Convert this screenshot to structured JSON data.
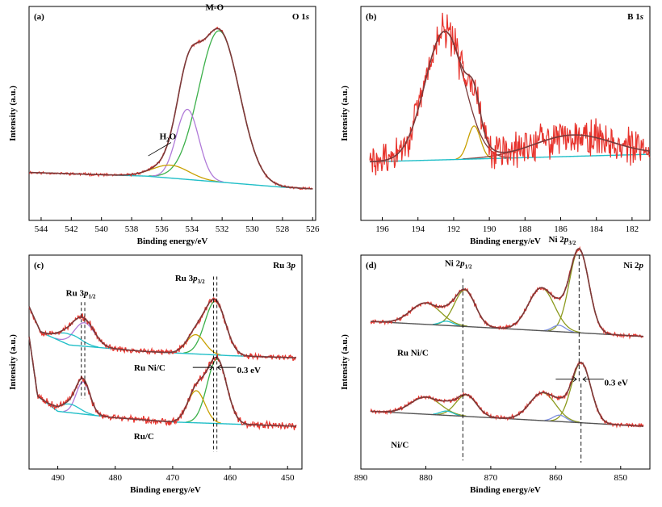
{
  "colors": {
    "raw": "#e8332c",
    "envelope": "#7b3a3a",
    "background": "#22bfc8",
    "baseline": "#555555",
    "green": "#3cb04a",
    "purple": "#b07ad8",
    "olive": "#c8a000",
    "ni_olive": "#8c9a1e",
    "blue": "#7d8fe0",
    "axis": "#000000"
  },
  "chart_data": [
    {
      "id": "a",
      "type": "line",
      "panel_label": "(a)",
      "spectrum_label": "O 1s",
      "xlabel": "Binding energy/eV",
      "ylabel": "Intensity (a.u.)",
      "xlim": [
        544.8,
        525.8
      ],
      "ylim": [
        -0.08,
        1.08
      ],
      "x_reversed": true,
      "xticks": [
        544,
        542,
        540,
        538,
        536,
        534,
        532,
        530,
        528,
        526
      ],
      "peaks": [
        {
          "name": "M-O",
          "center": 532.2,
          "height": 0.82,
          "width": 1.35
        },
        {
          "name": "",
          "center": 534.3,
          "height": 0.38,
          "width": 0.75
        },
        {
          "name": "H2O",
          "center": 535.4,
          "height": 0.07,
          "width": 1.2
        }
      ],
      "baseline": [
        [
          544.8,
          0.18
        ],
        [
          537,
          0.16
        ],
        [
          534,
          0.14
        ],
        [
          531,
          0.12
        ],
        [
          528,
          0.1
        ],
        [
          525.8,
          0.09
        ]
      ],
      "noise_amp": 0.006,
      "annotations": [
        {
          "text": "M-O",
          "x": 532.5,
          "y": 1.06
        },
        {
          "text": "H2O",
          "x": 535.6,
          "y": 0.36,
          "arrow_to": [
            536.9,
            0.27
          ]
        }
      ]
    },
    {
      "id": "b",
      "type": "line",
      "panel_label": "(b)",
      "spectrum_label": "B 1s",
      "xlabel": "Binding energy/eV",
      "ylabel": "Intensity (a.u.)",
      "xlim": [
        197.2,
        181.0
      ],
      "ylim": [
        -0.05,
        1.05
      ],
      "x_reversed": true,
      "xticks": [
        196,
        194,
        192,
        190,
        188,
        186,
        184,
        182
      ],
      "peaks": [
        {
          "name": "",
          "center": 192.5,
          "height": 0.66,
          "width": 1.1
        },
        {
          "name": "",
          "center": 190.85,
          "height": 0.17,
          "width": 0.35
        },
        {
          "name": "",
          "center": 185.3,
          "height": 0.11,
          "width": 2.2
        }
      ],
      "baseline": [
        [
          197.2,
          0.25
        ],
        [
          181.0,
          0.29
        ]
      ],
      "noise_amp": 0.08
    },
    {
      "id": "c",
      "type": "line",
      "panel_label": "(c)",
      "spectrum_label": "Ru 3p",
      "xlabel": "Binding energy/eV",
      "ylabel": "Intensity (a.u.)",
      "xlim": [
        495.0,
        447.5
      ],
      "ylim": [
        0,
        1
      ],
      "x_reversed": true,
      "xticks": [
        490,
        480,
        470,
        460,
        450
      ],
      "series": [
        {
          "name": "Ru Ni/C",
          "peaks": [
            {
              "name": "",
              "center": 462.6,
              "height": 0.25,
              "width": 1.8
            },
            {
              "name": "",
              "center": 466.0,
              "height": 0.09,
              "width": 1.6
            },
            {
              "name": "",
              "center": 485.4,
              "height": 0.11,
              "width": 1.8
            },
            {
              "name": "",
              "center": 488.0,
              "height": 0.05,
              "width": 2.0
            }
          ],
          "baseline": [
            [
              495,
              0.76
            ],
            [
              493,
              0.64
            ],
            [
              488,
              0.58
            ],
            [
              475,
              0.55
            ],
            [
              460,
              0.53
            ],
            [
              448.5,
              0.52
            ]
          ],
          "noise_amp": 0.012
        },
        {
          "name": "Ru/C",
          "peaks": [
            {
              "name": "",
              "center": 462.3,
              "height": 0.3,
              "width": 1.7
            },
            {
              "name": "",
              "center": 465.9,
              "height": 0.15,
              "width": 1.5
            },
            {
              "name": "",
              "center": 485.6,
              "height": 0.15,
              "width": 1.2
            },
            {
              "name": "",
              "center": 488.0,
              "height": 0.04,
              "width": 1.8
            }
          ],
          "baseline": [
            [
              495,
              0.62
            ],
            [
              493.5,
              0.34
            ],
            [
              490,
              0.27
            ],
            [
              480,
              0.24
            ],
            [
              470,
              0.22
            ],
            [
              448.5,
              0.2
            ]
          ],
          "noise_amp": 0.014
        }
      ],
      "annotations": [
        {
          "text": "Ru 3p1/2",
          "x": 486.0,
          "y": 0.81
        },
        {
          "text": "Ru 3p3/2",
          "x": 467.0,
          "y": 0.88
        },
        {
          "text": "Ru Ni/C",
          "x": 474.0,
          "y": 0.46
        },
        {
          "text": "Ru/C",
          "x": 475.0,
          "y": 0.14
        },
        {
          "text": "0.3 eV",
          "x": 458.8,
          "y": 0.45
        }
      ]
    },
    {
      "id": "d",
      "type": "line",
      "panel_label": "(d)",
      "spectrum_label": "Ni 2p",
      "xlabel": "Binding energy/eV",
      "ylabel": "Intensity (a.u.)",
      "xlim": [
        890.0,
        845.5
      ],
      "ylim": [
        0,
        1
      ],
      "x_reversed": true,
      "xticks": [
        890,
        880,
        870,
        860,
        850
      ],
      "series": [
        {
          "name": "Ru Ni/C",
          "peaks": [
            {
              "name": "Ni 2p3/2",
              "center": 856.4,
              "height": 0.39,
              "width": 1.5
            },
            {
              "name": "",
              "center": 862.2,
              "height": 0.2,
              "width": 2.0
            },
            {
              "name": "",
              "center": 859.5,
              "height": 0.03,
              "width": 1.0
            },
            {
              "name": "Ni 2p1/2",
              "center": 874.0,
              "height": 0.17,
              "width": 1.6
            },
            {
              "name": "",
              "center": 880.0,
              "height": 0.1,
              "width": 2.3
            },
            {
              "name": "",
              "center": 876.8,
              "height": 0.02,
              "width": 1.0
            }
          ],
          "baseline": [
            [
              888.5,
              0.69
            ],
            [
              870,
              0.66
            ],
            [
              846.5,
              0.62
            ]
          ],
          "noise_amp": 0.008
        },
        {
          "name": "Ni/C",
          "peaks": [
            {
              "name": "",
              "center": 856.1,
              "height": 0.28,
              "width": 1.5
            },
            {
              "name": "",
              "center": 862.0,
              "height": 0.13,
              "width": 2.0
            },
            {
              "name": "",
              "center": 859.4,
              "height": 0.03,
              "width": 1.0
            },
            {
              "name": "",
              "center": 873.8,
              "height": 0.1,
              "width": 1.6
            },
            {
              "name": "",
              "center": 880.0,
              "height": 0.08,
              "width": 2.3
            },
            {
              "name": "",
              "center": 876.8,
              "height": 0.02,
              "width": 1.0
            }
          ],
          "baseline": [
            [
              888.5,
              0.27
            ],
            [
              870,
              0.24
            ],
            [
              846.5,
              0.2
            ]
          ],
          "noise_amp": 0.008
        }
      ],
      "annotations": [
        {
          "text": "Ni 2p1/2",
          "x": 875.0,
          "y": 0.95
        },
        {
          "text": "Ni 2p3/2",
          "x": 859.0,
          "y": 1.06
        },
        {
          "text": "Ru Ni/C",
          "x": 882.0,
          "y": 0.53
        },
        {
          "text": "Ni/C",
          "x": 884.0,
          "y": 0.1
        },
        {
          "text": "0.3 eV",
          "x": 852.5,
          "y": 0.39
        }
      ]
    }
  ]
}
